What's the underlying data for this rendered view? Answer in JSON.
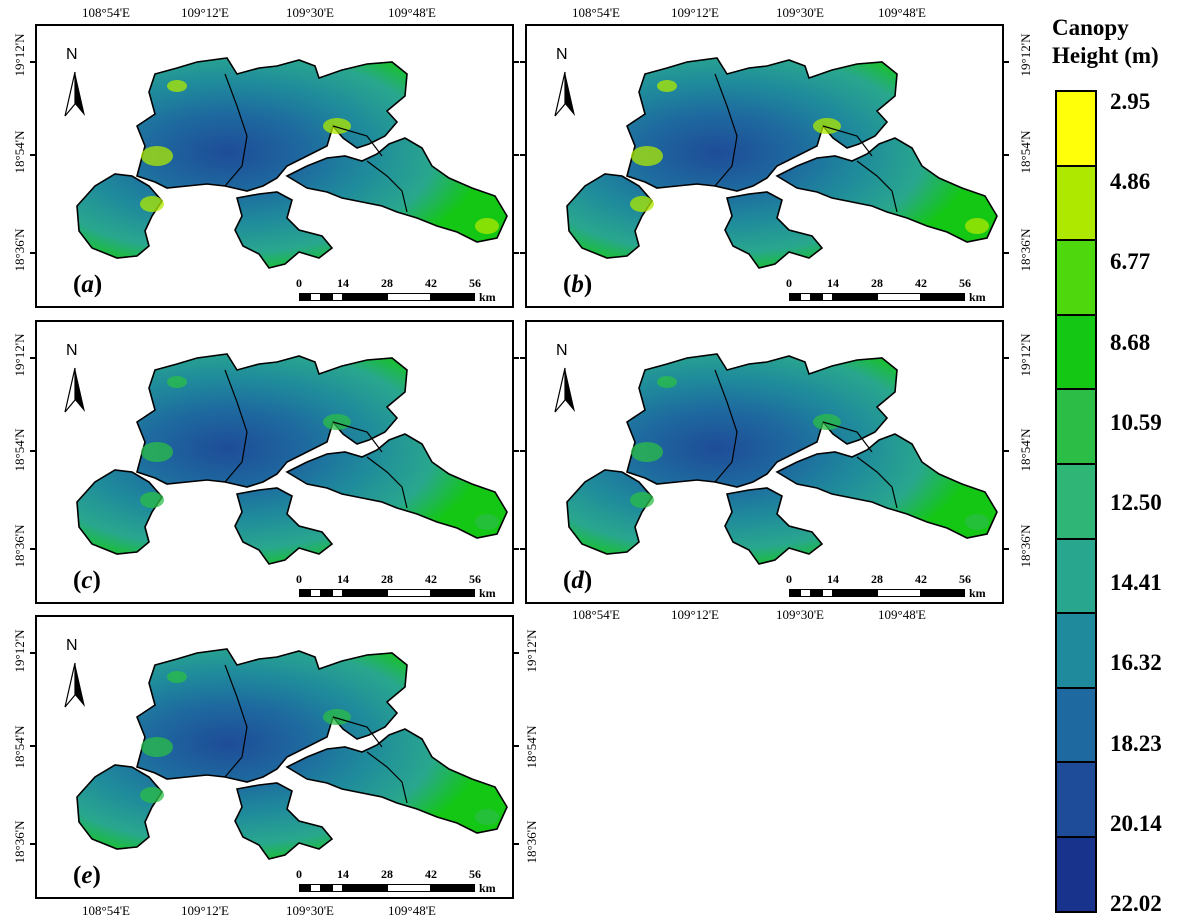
{
  "coords": {
    "lon_top": [
      "108°54'E",
      "109°12'E",
      "109°30'E",
      "109°48'E"
    ],
    "lon_bottom": [
      "108°54'E",
      "109°12'E",
      "109°30'E",
      "109°48'E"
    ],
    "lat": [
      "19°12'N",
      "18°54'N",
      "18°36'N"
    ]
  },
  "panels": [
    {
      "label": "a"
    },
    {
      "label": "b"
    },
    {
      "label": "c"
    },
    {
      "label": "d"
    },
    {
      "label": "e"
    }
  ],
  "north_label": "N",
  "scale": {
    "ticks": [
      "0",
      "14",
      "28",
      "42",
      "56"
    ],
    "unit": "km"
  },
  "legend": {
    "title_line1": "Canopy",
    "title_line2": "Height (m)",
    "values": [
      "2.95",
      "4.86",
      "6.77",
      "8.68",
      "10.59",
      "12.50",
      "14.41",
      "16.32",
      "18.23",
      "20.14",
      "22.02"
    ],
    "colors": [
      "#ffff0a",
      "#aee800",
      "#4fd70e",
      "#14c714",
      "#2bbd46",
      "#2fb676",
      "#29a78e",
      "#1f8a9c",
      "#1e699f",
      "#1e4c98",
      "#17338c"
    ]
  }
}
